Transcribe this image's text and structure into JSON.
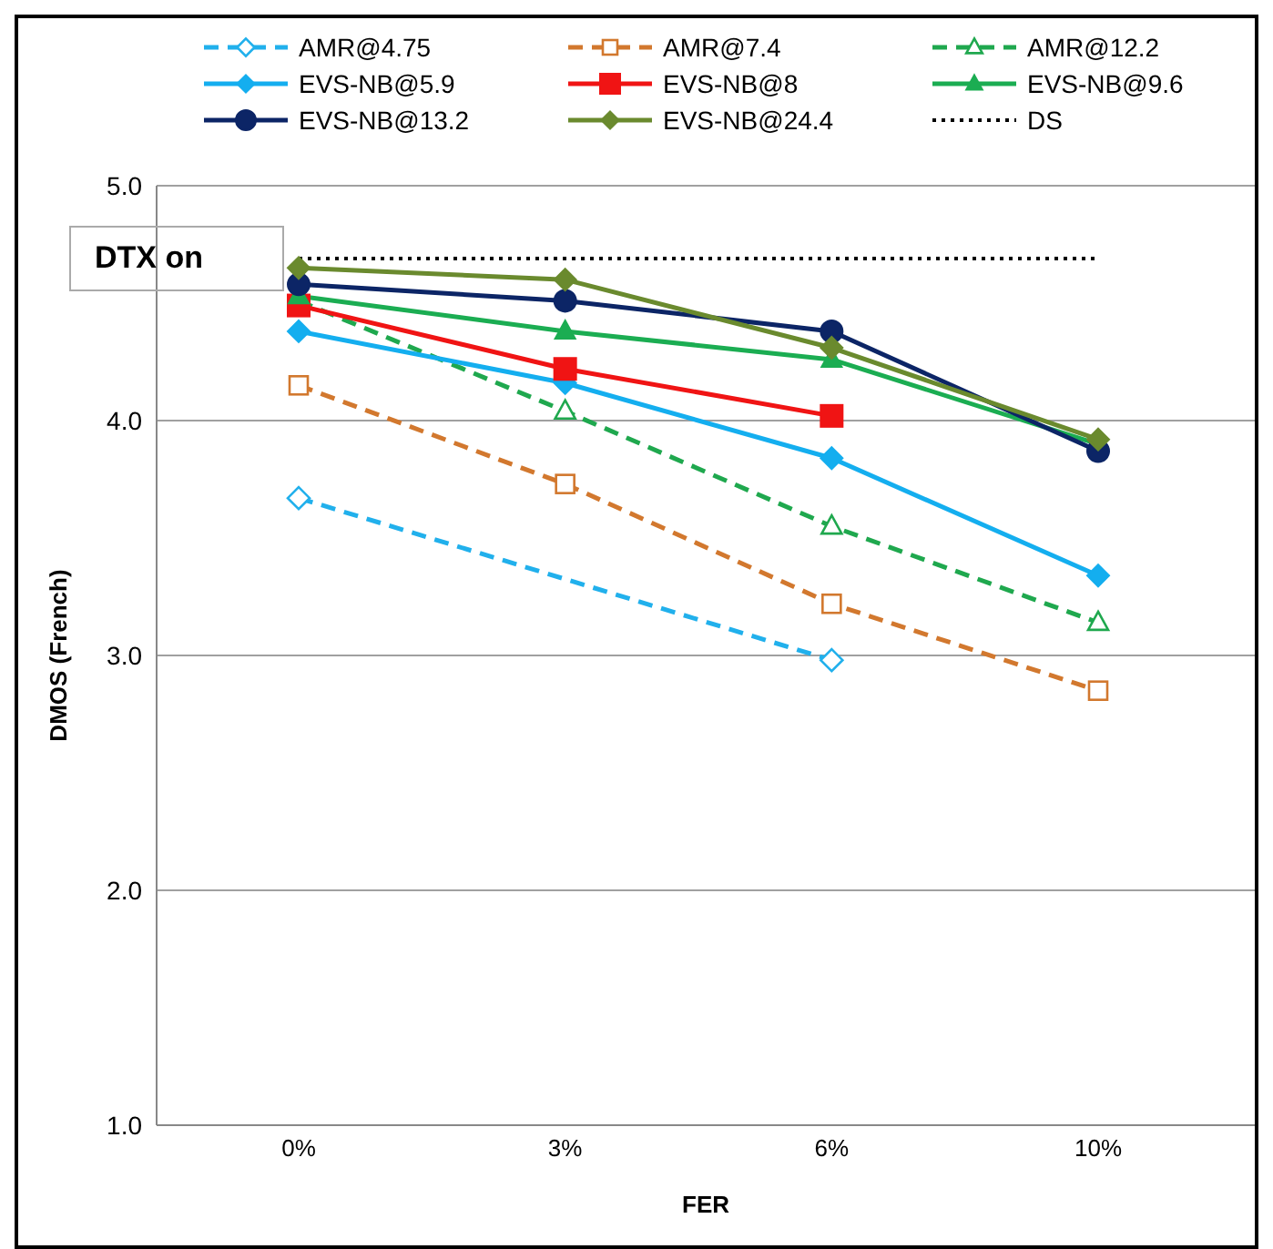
{
  "chart_data": {
    "type": "line",
    "xlabel": "FER",
    "ylabel": "DMOS (French)",
    "categories": [
      "0%",
      "3%",
      "6%",
      "10%"
    ],
    "series": [
      {
        "name": "AMR@4.75",
        "color": "#21b0ec",
        "marker": "diamond",
        "line_style": "dashed",
        "values": [
          3.67,
          null,
          2.98,
          null
        ]
      },
      {
        "name": "AMR@7.4",
        "color": "#d2782e",
        "marker": "square",
        "line_style": "dashed",
        "values": [
          4.15,
          3.73,
          3.22,
          2.85
        ]
      },
      {
        "name": "AMR@12.2",
        "color": "#1fa84e",
        "marker": "triangle",
        "line_style": "dashed",
        "values": [
          4.51,
          4.04,
          3.55,
          3.14
        ]
      },
      {
        "name": "EVS-NB@5.9",
        "color": "#14aeef",
        "marker": "diamond",
        "line_style": "solid",
        "values": [
          4.38,
          4.16,
          3.84,
          3.34
        ]
      },
      {
        "name": "EVS-NB@8",
        "color": "#f01414",
        "marker": "square",
        "line_style": "solid",
        "values": [
          4.49,
          4.22,
          4.02,
          null
        ]
      },
      {
        "name": "EVS-NB@9.6",
        "color": "#1bad52",
        "marker": "triangle",
        "line_style": "solid",
        "values": [
          4.53,
          4.38,
          4.26,
          3.9
        ]
      },
      {
        "name": "EVS-NB@13.2",
        "color": "#0c2566",
        "marker": "circle",
        "line_style": "solid",
        "values": [
          4.58,
          4.51,
          4.38,
          3.87
        ]
      },
      {
        "name": "EVS-NB@24.4",
        "color": "#6a8a2e",
        "marker": "diamond",
        "line_style": "solid",
        "values": [
          4.65,
          4.6,
          4.31,
          3.92
        ]
      },
      {
        "name": "DS",
        "color": "#000000",
        "marker": "none",
        "line_style": "dotted",
        "values": [
          4.69,
          4.69,
          4.69,
          4.69
        ]
      }
    ],
    "ylim": [
      1,
      5
    ],
    "yticks": [
      {
        "value": 1,
        "label": "1.0"
      },
      {
        "value": 2,
        "label": "2.0"
      },
      {
        "value": 3,
        "label": "3.0"
      },
      {
        "value": 4,
        "label": "4.0"
      },
      {
        "value": 5,
        "label": "5.0"
      }
    ],
    "grid": "y",
    "legend": "top",
    "annotations": [
      "DTX on"
    ]
  }
}
